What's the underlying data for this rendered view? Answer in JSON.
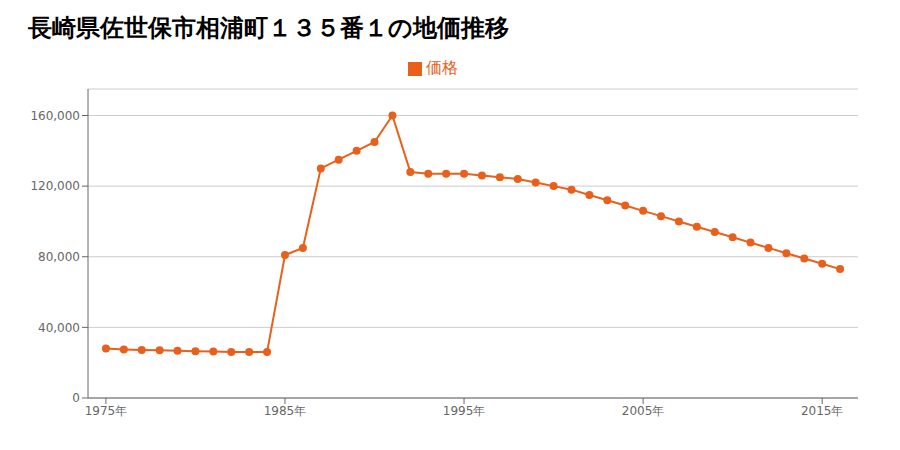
{
  "chart_data": {
    "type": "line",
    "title": "長崎県佐世保市相浦町１３５番１の地価推移",
    "x": [
      1975,
      1976,
      1977,
      1978,
      1979,
      1980,
      1981,
      1982,
      1983,
      1984,
      1985,
      1986,
      1987,
      1988,
      1989,
      1990,
      1991,
      1992,
      1993,
      1994,
      1995,
      1996,
      1997,
      1998,
      1999,
      2000,
      2001,
      2002,
      2003,
      2004,
      2005,
      2006,
      2007,
      2008,
      2009,
      2010,
      2011,
      2012,
      2013,
      2014,
      2015,
      2016
    ],
    "series": [
      {
        "name": "価格",
        "color": "#e8601c",
        "marker": "circle",
        "values": [
          28000,
          27500,
          27200,
          27000,
          26800,
          26500,
          26300,
          26000,
          26000,
          26000,
          81000,
          85000,
          130000,
          135000,
          140000,
          145000,
          160000,
          128000,
          127000,
          127000,
          127000,
          126000,
          125000,
          124000,
          122000,
          120000,
          118000,
          115000,
          112000,
          109000,
          106000,
          103000,
          100000,
          97000,
          94000,
          91000,
          88000,
          85000,
          82000,
          79000,
          76000,
          73000
        ]
      }
    ],
    "xlim": [
      1974,
      2017
    ],
    "xticks": [
      {
        "value": 1975,
        "label": "1975年"
      },
      {
        "value": 1985,
        "label": "1985年"
      },
      {
        "value": 1995,
        "label": "1995年"
      },
      {
        "value": 2005,
        "label": "2005年"
      },
      {
        "value": 2015,
        "label": "2015年"
      }
    ],
    "ylim": [
      0,
      175000
    ],
    "yticks": [
      0,
      {
        "value": 40000,
        "label": "40,000"
      },
      {
        "value": 80000,
        "label": "80,000"
      },
      {
        "value": 120000,
        "label": "120,000"
      },
      {
        "value": 160000,
        "label": "160,000"
      }
    ],
    "grid": true,
    "legend": "top"
  }
}
